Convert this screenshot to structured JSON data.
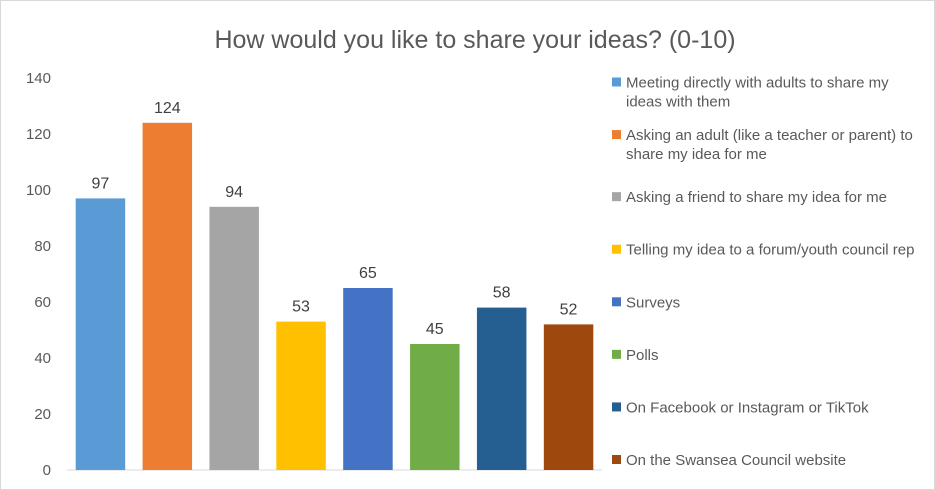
{
  "chart_data": {
    "type": "bar",
    "title": "How would you like to share your ideas? (0-10)",
    "xlabel": "",
    "ylabel": "",
    "ylim": [
      0,
      140
    ],
    "yticks": [
      0,
      20,
      40,
      60,
      80,
      100,
      120,
      140
    ],
    "grid": false,
    "legend_position": "right",
    "series": [
      {
        "name": "Meeting directly with adults to share my ideas with them",
        "values": [
          97
        ],
        "color": "#5b9bd5"
      },
      {
        "name": "Asking an adult (like a teacher or parent) to share my idea for me",
        "values": [
          124
        ],
        "color": "#ed7d31"
      },
      {
        "name": "Asking a friend to share my idea for me",
        "values": [
          94
        ],
        "color": "#a5a5a5"
      },
      {
        "name": "Telling my idea to a forum/youth council rep",
        "values": [
          53
        ],
        "color": "#ffc000"
      },
      {
        "name": "Surveys",
        "values": [
          65
        ],
        "color": "#4472c4"
      },
      {
        "name": "Polls",
        "values": [
          45
        ],
        "color": "#70ad47"
      },
      {
        "name": "On Facebook or Instagram or TikTok",
        "values": [
          58
        ],
        "color": "#255e91"
      },
      {
        "name": "On the Swansea Council website",
        "values": [
          52
        ],
        "color": "#9e480e"
      }
    ]
  }
}
